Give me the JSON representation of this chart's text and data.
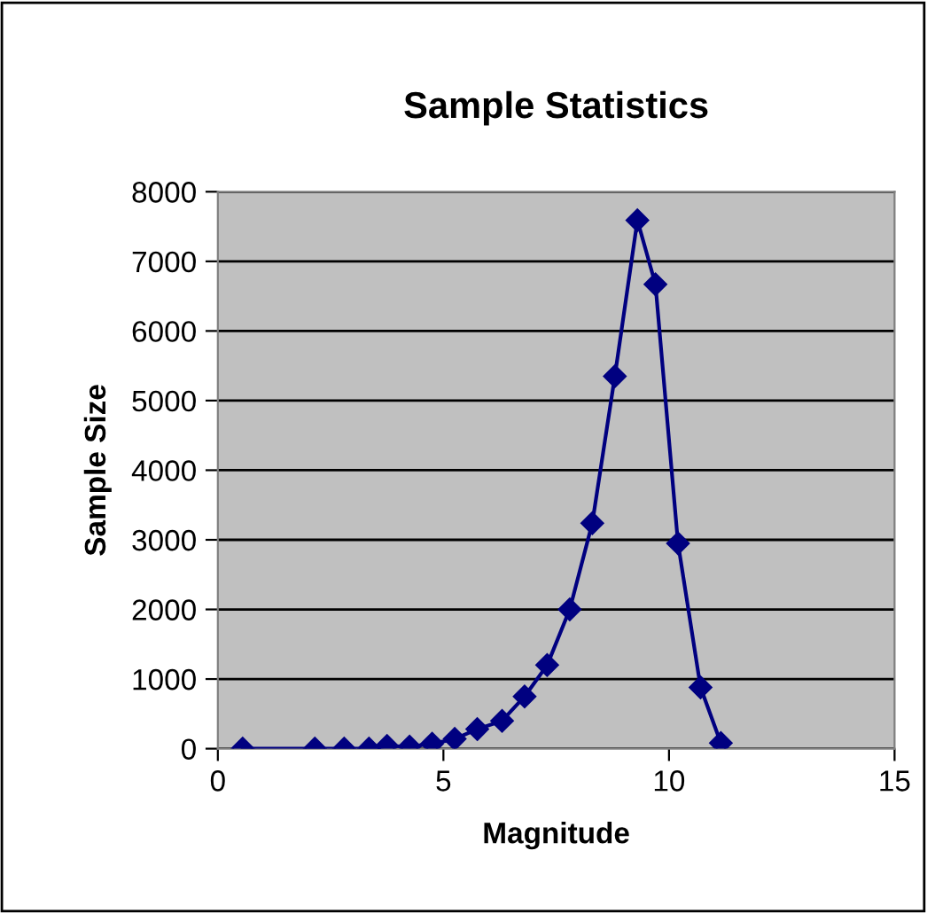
{
  "chart_data": {
    "type": "line",
    "title": "Sample Statistics",
    "xlabel": "Magnitude",
    "ylabel": "Sample Size",
    "x": [
      0.55,
      2.15,
      2.8,
      3.35,
      3.75,
      4.25,
      4.75,
      5.25,
      5.75,
      6.3,
      6.8,
      7.3,
      7.8,
      8.3,
      8.8,
      9.3,
      9.7,
      10.2,
      10.7,
      11.15
    ],
    "series": [
      {
        "color": "#000080",
        "values": [
          0,
          0,
          0,
          0,
          40,
          30,
          70,
          140,
          280,
          400,
          750,
          1200,
          2000,
          3240,
          5350,
          7590,
          6670,
          2950,
          880,
          80
        ]
      }
    ],
    "xlim": [
      0,
      15
    ],
    "xticks": [
      0,
      5,
      10,
      15
    ],
    "ylim": [
      0,
      8000
    ],
    "yticks": [
      0,
      1000,
      2000,
      3000,
      4000,
      5000,
      6000,
      7000,
      8000
    ],
    "grid": "y",
    "marker": "diamond",
    "line_style": "solid"
  }
}
